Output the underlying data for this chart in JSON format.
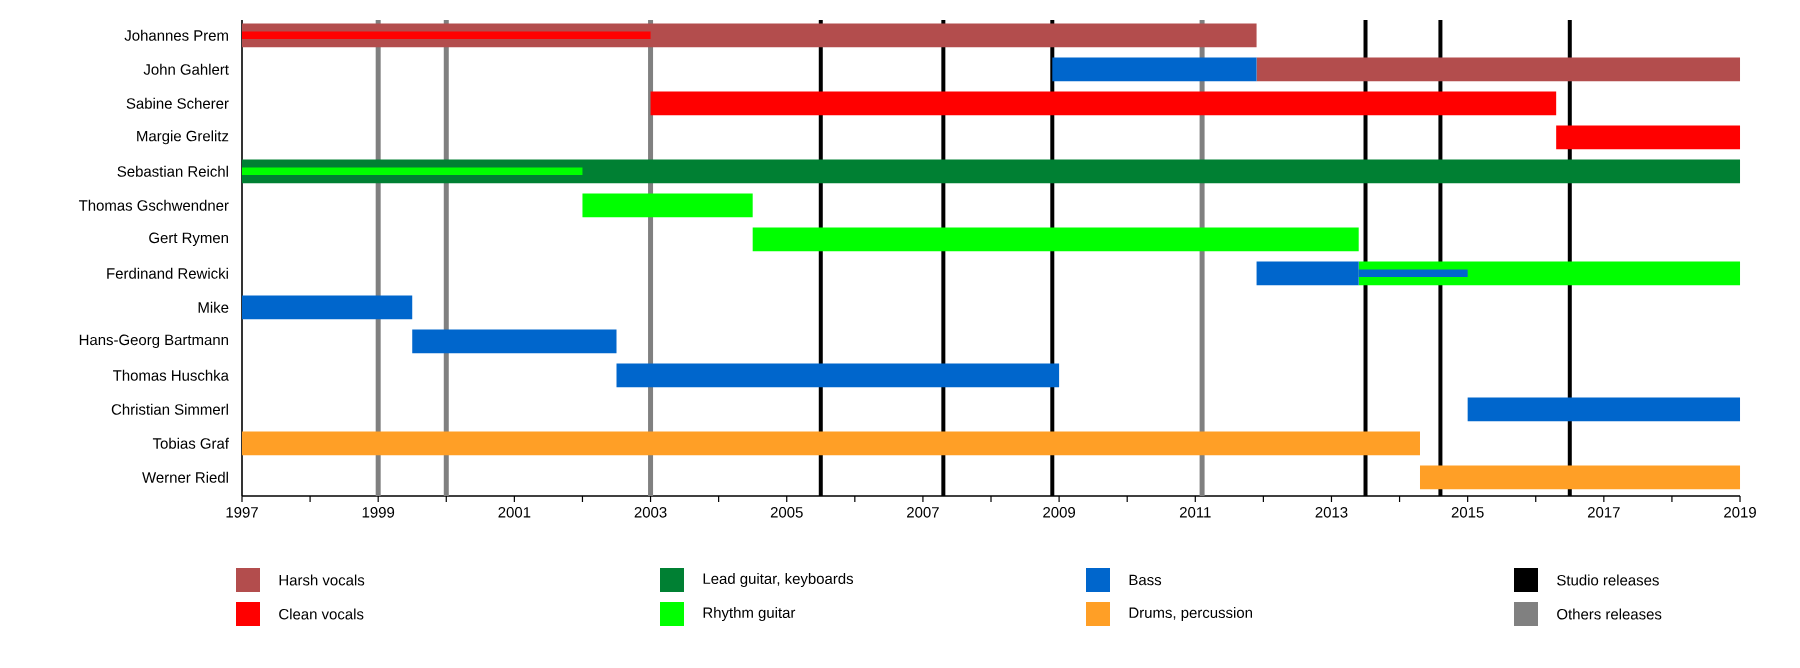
{
  "chart_data": {
    "type": "bar",
    "orientation": "horizontal",
    "legend": "bottom",
    "categories": [
      "Johannes Prem",
      "John Gahlert",
      "Sabine Scherer",
      "Margie Grelitz",
      "Sebastian Reichl",
      "Thomas Gschwendner",
      "Gert Rymen",
      "Ferdinand Rewicki",
      "Mike",
      "Hans-Georg Bartmann",
      "Thomas Huschka",
      "Christian Simmerl",
      "Tobias Graf",
      "Werner Riedl"
    ],
    "series": [
      {
        "name": "Harsh vocals",
        "color": "#b34d4d",
        "base": [
          1997,
          2011.9,
          null,
          null,
          null,
          null,
          null,
          null,
          null,
          null,
          null,
          null,
          null,
          null
        ],
        "values": [
          14.9,
          7.1,
          null,
          null,
          null,
          null,
          null,
          null,
          null,
          null,
          null,
          null,
          null,
          null
        ]
      },
      {
        "name": "Clean vocals",
        "color": "#ff0000",
        "base": [
          null,
          null,
          2003,
          2016.3,
          null,
          null,
          null,
          null,
          null,
          null,
          null,
          null,
          null,
          null
        ],
        "values": [
          null,
          null,
          13.3,
          2.7,
          null,
          null,
          null,
          null,
          null,
          null,
          null,
          null,
          null,
          null
        ]
      },
      {
        "name": "Lead guitar, keyboards",
        "color": "#008033",
        "base": [
          null,
          null,
          null,
          null,
          1997,
          null,
          null,
          null,
          null,
          null,
          null,
          null,
          null,
          null
        ],
        "values": [
          null,
          null,
          null,
          null,
          22,
          null,
          null,
          null,
          null,
          null,
          null,
          null,
          null,
          null
        ]
      },
      {
        "name": "Rhythm guitar",
        "color": "#00ff00",
        "base": [
          null,
          null,
          null,
          null,
          null,
          2002,
          2004.5,
          2013.4,
          null,
          null,
          null,
          null,
          null,
          null
        ],
        "values": [
          null,
          null,
          null,
          null,
          null,
          2.5,
          8.9,
          5.6,
          null,
          null,
          null,
          null,
          null,
          null
        ]
      },
      {
        "name": "Bass",
        "color": "#0066cc",
        "base": [
          null,
          2008.9,
          null,
          null,
          null,
          null,
          null,
          2011.9,
          1997,
          1999.5,
          2002.5,
          2015,
          null,
          null
        ],
        "values": [
          null,
          3,
          null,
          null,
          null,
          null,
          null,
          1.5,
          2.5,
          3,
          6.5,
          4,
          null,
          null
        ]
      },
      {
        "name": "Drums, percussion",
        "color": "#ff9f26",
        "base": [
          null,
          null,
          null,
          null,
          null,
          null,
          null,
          null,
          null,
          null,
          null,
          null,
          1997,
          2014.3
        ],
        "values": [
          null,
          null,
          null,
          null,
          null,
          null,
          null,
          null,
          null,
          null,
          null,
          null,
          17.3,
          4.7
        ]
      },
      {
        "color": "#ff0000",
        "base": [
          1997,
          null,
          null,
          null,
          null,
          null,
          null,
          null,
          null,
          null,
          null,
          null,
          null,
          null
        ],
        "values": [
          6,
          null,
          null,
          null,
          null,
          null,
          null,
          null,
          null,
          null,
          null,
          null,
          null,
          null
        ]
      },
      {
        "color": "#00ff00",
        "base": [
          null,
          null,
          null,
          null,
          1997,
          null,
          null,
          null,
          null,
          null,
          null,
          null,
          null,
          null
        ],
        "values": [
          null,
          null,
          null,
          null,
          5,
          null,
          null,
          null,
          null,
          null,
          null,
          null,
          null,
          null
        ]
      },
      {
        "color": "#0066cc",
        "base": [
          null,
          null,
          null,
          null,
          null,
          null,
          null,
          2013.4,
          null,
          null,
          null,
          null,
          null,
          null
        ],
        "values": [
          null,
          null,
          null,
          null,
          null,
          null,
          null,
          1.6,
          null,
          null,
          null,
          null,
          null,
          null
        ]
      }
    ],
    "ref_lines": [
      {
        "axis": "x",
        "value": 2005.5,
        "color": "#000000",
        "label": "Studio releases"
      },
      {
        "axis": "x",
        "value": 2007.3,
        "color": "#000000"
      },
      {
        "axis": "x",
        "value": 2008.9,
        "color": "#000000"
      },
      {
        "axis": "x",
        "value": 2013.5,
        "color": "#000000"
      },
      {
        "axis": "x",
        "value": 2014.6,
        "color": "#000000"
      },
      {
        "axis": "x",
        "value": 2016.5,
        "color": "#000000"
      },
      {
        "axis": "x",
        "value": 1999,
        "color": "#808080",
        "label": "Others releases"
      },
      {
        "axis": "x",
        "value": 2000,
        "color": "#808080"
      },
      {
        "axis": "x",
        "value": 2003,
        "color": "#808080"
      },
      {
        "axis": "x",
        "value": 2011.1,
        "color": "#808080"
      }
    ],
    "xlim": [
      1997,
      2019
    ],
    "xticks": [
      1997,
      {
        "value": 1998,
        "label": null
      },
      1999,
      {
        "value": 2000,
        "label": null
      },
      2001,
      {
        "value": 2002,
        "label": null
      },
      2003,
      {
        "value": 2004,
        "label": null
      },
      2005,
      {
        "value": 2006,
        "label": null
      },
      2007,
      {
        "value": 2008,
        "label": null
      },
      2009,
      {
        "value": 2010,
        "label": null
      },
      2011,
      {
        "value": 2012,
        "label": null
      },
      2013,
      {
        "value": 2014,
        "label": null
      },
      2015,
      {
        "value": 2016,
        "label": null
      },
      2017,
      {
        "value": 2018,
        "label": null
      },
      2019
    ]
  }
}
